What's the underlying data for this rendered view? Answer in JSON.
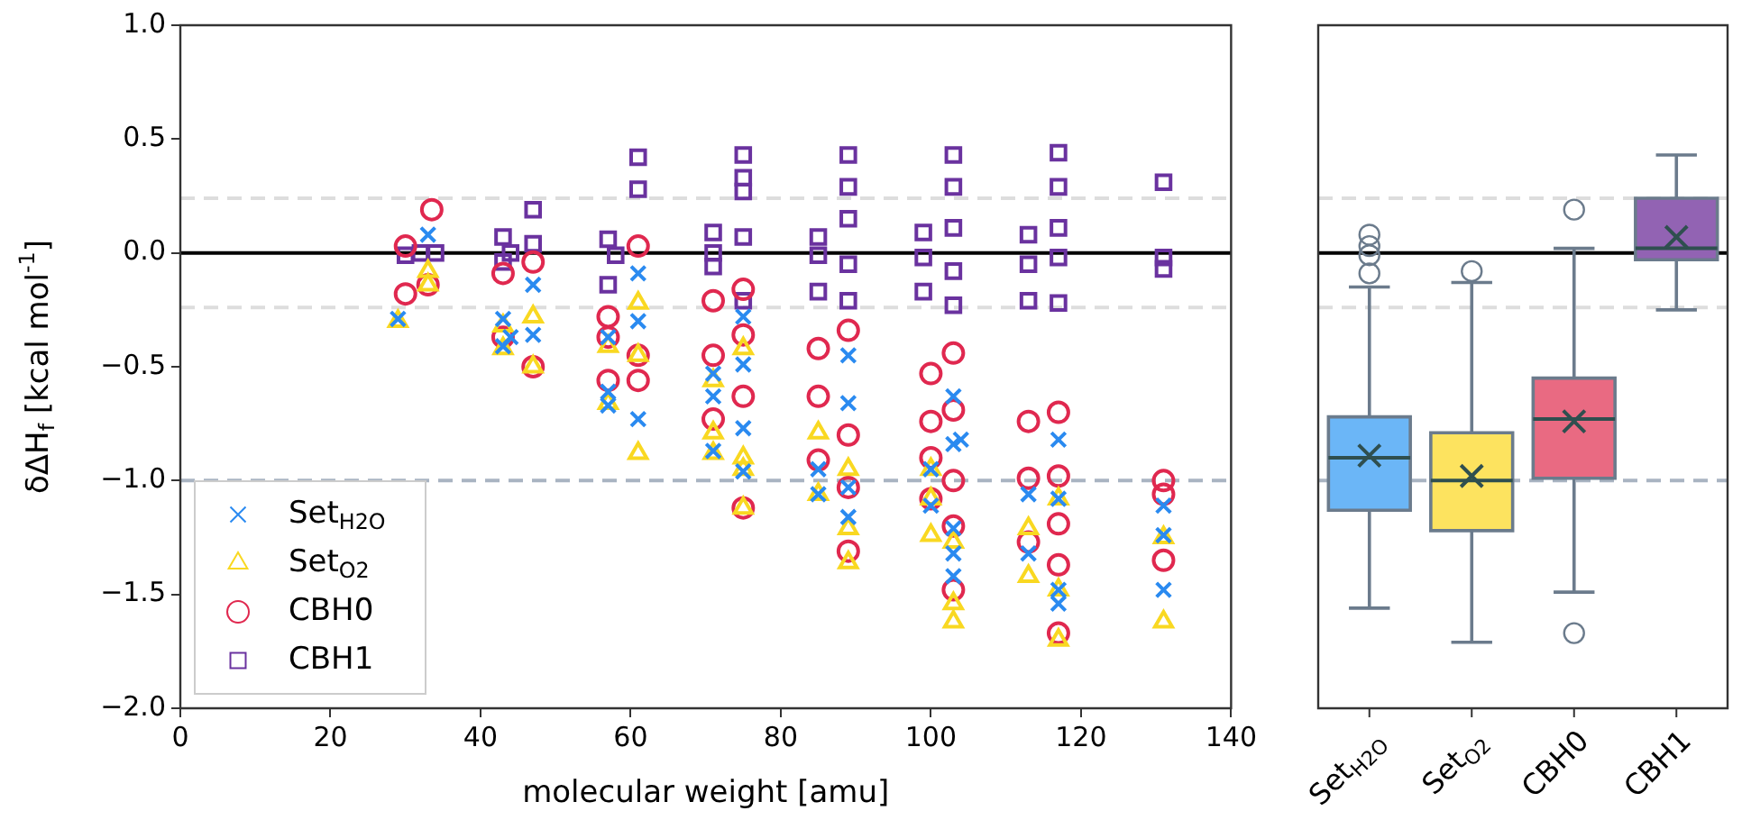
{
  "chart_data": [
    {
      "type": "scatter",
      "xlabel": "molecular weight [amu]",
      "ylabel": "δΔH$_{f}$ [kcal mol$^{-1}$]",
      "xlim": [
        0,
        140
      ],
      "xticks": [
        0,
        20,
        40,
        60,
        80,
        100,
        120,
        140
      ],
      "ylim": [
        -2,
        1
      ],
      "yticks": [
        {
          "value": -2,
          "label": "−2.0"
        },
        {
          "value": -1.5,
          "label": "−1.5"
        },
        {
          "value": -1,
          "label": "−1.0"
        },
        {
          "value": -0.5,
          "label": "−0.5"
        },
        {
          "value": 0,
          "label": "0.0"
        },
        {
          "value": 0.5,
          "label": "0.5"
        },
        {
          "value": 1,
          "label": "1.0"
        }
      ],
      "grid": false,
      "legend": "bottom left",
      "ref_lines": [
        {
          "axis": "y",
          "value": 0,
          "color": "#000000",
          "line_style": "solid"
        },
        {
          "axis": "y",
          "value": 0.24,
          "color": "#dddddd",
          "line_style": "dashed"
        },
        {
          "axis": "y",
          "value": -0.24,
          "color": "#dddddd",
          "line_style": "dashed"
        },
        {
          "axis": "y",
          "value": -1,
          "color": "#a9b4c2",
          "line_style": "dashed"
        }
      ],
      "series": [
        {
          "name": "Set$_{H2O}$",
          "color": "#2a8af0",
          "marker": "cross",
          "x": [
            29,
            33,
            43,
            43,
            44,
            47,
            47,
            57,
            57,
            57,
            61,
            61,
            61,
            71,
            71,
            71,
            75,
            75,
            75,
            75,
            85,
            85,
            89,
            89,
            89,
            89,
            100,
            100,
            103,
            103,
            103,
            103,
            103,
            104,
            113,
            113,
            117,
            117,
            117,
            117,
            131,
            131,
            131
          ],
          "values": [
            -0.29,
            0.08,
            -0.29,
            -0.41,
            -0.37,
            -0.14,
            -0.36,
            -0.37,
            -0.61,
            -0.67,
            -0.09,
            -0.3,
            -0.73,
            -0.53,
            -0.63,
            -0.87,
            -0.28,
            -0.49,
            -0.77,
            -0.96,
            -0.95,
            -1.06,
            -0.45,
            -0.66,
            -1.16,
            -1.03,
            -0.95,
            -1.11,
            -0.63,
            -0.84,
            -1.32,
            -1.42,
            -1.21,
            -0.82,
            -1.06,
            -1.32,
            -0.82,
            -1.08,
            -1.54,
            -1.48,
            -1.11,
            -1.24,
            -1.48
          ]
        },
        {
          "name": "Set$_{O2}$",
          "color": "#f9d821",
          "marker": "triangle",
          "x": [
            29,
            33,
            33,
            43,
            43,
            47,
            47,
            57,
            57,
            61,
            61,
            61,
            71,
            71,
            71,
            75,
            75,
            75,
            75,
            85,
            85,
            89,
            89,
            89,
            100,
            100,
            100,
            103,
            103,
            103,
            113,
            113,
            117,
            117,
            117,
            131,
            131
          ],
          "values": [
            -0.3,
            -0.08,
            -0.14,
            -0.42,
            -0.32,
            -0.28,
            -0.5,
            -0.41,
            -0.66,
            -0.22,
            -0.88,
            -0.45,
            -0.56,
            -0.79,
            -0.88,
            -0.42,
            -0.9,
            -0.95,
            -1.12,
            -0.79,
            -1.06,
            -1.21,
            -1.36,
            -0.95,
            -1.24,
            -0.95,
            -1.08,
            -1.54,
            -1.62,
            -1.27,
            -1.42,
            -1.21,
            -1.7,
            -1.48,
            -1.08,
            -1.62,
            -1.25
          ]
        },
        {
          "name": "CBH0",
          "color": "#e0284f",
          "marker": "circle",
          "x": [
            30,
            30,
            33.5,
            33,
            43,
            43,
            47,
            47,
            57,
            57,
            57,
            61,
            61,
            61,
            71,
            71,
            71,
            75,
            75,
            75,
            75,
            85,
            85,
            85,
            89,
            89,
            89,
            89,
            100,
            100,
            100,
            100,
            103,
            103,
            103,
            103,
            103,
            113,
            113,
            113,
            117,
            117,
            117,
            117,
            117,
            131,
            131,
            131
          ],
          "values": [
            0.03,
            -0.18,
            0.19,
            -0.14,
            -0.09,
            -0.37,
            -0.04,
            -0.5,
            -0.28,
            -0.37,
            -0.56,
            0.03,
            -0.45,
            -0.56,
            -0.21,
            -0.45,
            -0.73,
            -0.16,
            -0.36,
            -0.63,
            -1.12,
            -0.42,
            -0.63,
            -0.91,
            -0.34,
            -0.8,
            -1.03,
            -1.31,
            -0.53,
            -0.74,
            -0.9,
            -1.08,
            -0.44,
            -0.69,
            -1,
            -1.2,
            -1.48,
            -0.74,
            -0.99,
            -1.27,
            -0.7,
            -0.98,
            -1.19,
            -1.37,
            -1.67,
            -1,
            -1.35,
            -1.06
          ]
        },
        {
          "name": "CBH1",
          "color": "#6a329f",
          "marker": "square",
          "x": [
            30,
            32,
            34,
            43,
            43,
            44,
            47,
            47,
            57,
            57,
            58,
            61,
            61,
            71,
            71,
            71,
            75,
            75,
            75,
            75,
            75,
            85,
            85,
            85,
            89,
            89,
            89,
            89,
            89,
            99,
            99,
            99,
            103,
            103,
            103,
            103,
            103,
            113,
            113,
            113,
            117,
            117,
            117,
            117,
            117,
            131,
            131,
            131
          ],
          "values": [
            -0.01,
            0,
            0,
            0.07,
            -0.04,
            0,
            0.19,
            0.04,
            0.06,
            -0.14,
            -0.01,
            0.42,
            0.28,
            0.09,
            0,
            -0.06,
            0.43,
            0.33,
            0.27,
            0.07,
            -0.21,
            0.07,
            -0.01,
            -0.17,
            0.43,
            0.29,
            0.15,
            -0.05,
            -0.21,
            0.09,
            -0.02,
            -0.17,
            0.43,
            0.29,
            0.11,
            -0.08,
            -0.23,
            0.08,
            -0.05,
            -0.21,
            0.44,
            0.29,
            0.11,
            -0.02,
            -0.22,
            0.31,
            -0.02,
            -0.07
          ]
        }
      ]
    },
    {
      "type": "box",
      "categories": [
        "Set$_{H2O}$",
        "Set$_{O2}$",
        "CBH0",
        "CBH1"
      ],
      "colors": [
        "#6bb6f7",
        "#fde35f",
        "#e96a82",
        "#9263b3"
      ],
      "boxes": [
        {
          "low": -1.56,
          "q1": -1.13,
          "median": -0.9,
          "q3": -0.72,
          "high": -0.15,
          "mean": -0.89,
          "outliers": [
            0.08,
            0.03,
            -0.01,
            -0.09
          ]
        },
        {
          "low": -1.71,
          "q1": -1.22,
          "median": -1,
          "q3": -0.79,
          "high": -0.13,
          "mean": -0.98,
          "outliers": [
            -0.08
          ]
        },
        {
          "low": -1.49,
          "q1": -0.99,
          "median": -0.73,
          "q3": -0.55,
          "high": 0.02,
          "mean": -0.74,
          "outliers": [
            0.19,
            -1.67
          ]
        },
        {
          "low": -0.25,
          "q1": -0.03,
          "median": 0.02,
          "q3": 0.24,
          "high": 0.43,
          "mean": 0.07
        }
      ],
      "ylim": [
        -2,
        1
      ],
      "tick_labels": "x",
      "ref_lines": [
        {
          "axis": "y",
          "value": 0,
          "color": "#000000",
          "line_style": "solid"
        },
        {
          "axis": "y",
          "value": 0.24,
          "color": "#dddddd",
          "line_style": "dashed"
        },
        {
          "axis": "y",
          "value": -0.24,
          "color": "#dddddd",
          "line_style": "dashed"
        },
        {
          "axis": "y",
          "value": -1,
          "color": "#a9b4c2",
          "line_style": "dashed"
        }
      ]
    }
  ]
}
